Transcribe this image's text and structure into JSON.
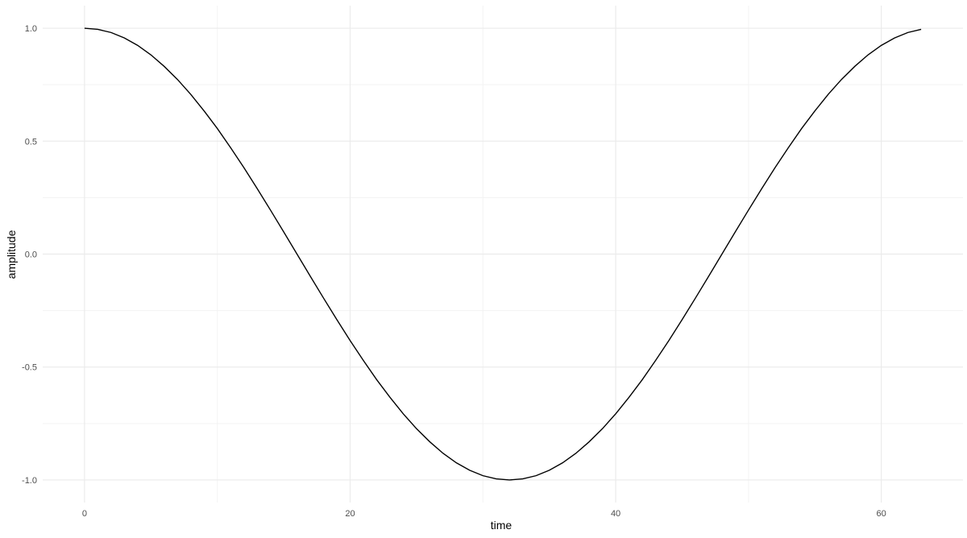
{
  "chart_data": {
    "type": "line",
    "title": "",
    "xlabel": "time",
    "ylabel": "amplitude",
    "xlim": [
      0,
      63
    ],
    "ylim": [
      -1,
      1
    ],
    "grid": true,
    "x_ticks": [
      "0",
      "20",
      "40",
      "60"
    ],
    "y_ticks": [
      "-1.0",
      "-0.5",
      "0.0",
      "0.5",
      "1.0"
    ],
    "line_color": "#000000",
    "grid_color": "#ebebeb",
    "x": [
      0,
      1,
      2,
      3,
      4,
      5,
      6,
      7,
      8,
      9,
      10,
      11,
      12,
      13,
      14,
      15,
      16,
      17,
      18,
      19,
      20,
      21,
      22,
      23,
      24,
      25,
      26,
      27,
      28,
      29,
      30,
      31,
      32,
      33,
      34,
      35,
      36,
      37,
      38,
      39,
      40,
      41,
      42,
      43,
      44,
      45,
      46,
      47,
      48,
      49,
      50,
      51,
      52,
      53,
      54,
      55,
      56,
      57,
      58,
      59,
      60,
      61,
      62,
      63
    ],
    "y": [
      1.0,
      0.995,
      0.981,
      0.957,
      0.924,
      0.882,
      0.831,
      0.773,
      0.707,
      0.634,
      0.556,
      0.471,
      0.383,
      0.29,
      0.195,
      0.098,
      0.0,
      -0.098,
      -0.195,
      -0.29,
      -0.383,
      -0.471,
      -0.556,
      -0.634,
      -0.707,
      -0.773,
      -0.831,
      -0.882,
      -0.924,
      -0.957,
      -0.981,
      -0.995,
      -1.0,
      -0.995,
      -0.981,
      -0.957,
      -0.924,
      -0.882,
      -0.831,
      -0.773,
      -0.707,
      -0.634,
      -0.556,
      -0.471,
      -0.383,
      -0.29,
      -0.195,
      -0.098,
      0.0,
      0.098,
      0.195,
      0.29,
      0.383,
      0.471,
      0.556,
      0.634,
      0.707,
      0.773,
      0.831,
      0.882,
      0.924,
      0.957,
      0.981,
      0.995
    ]
  }
}
